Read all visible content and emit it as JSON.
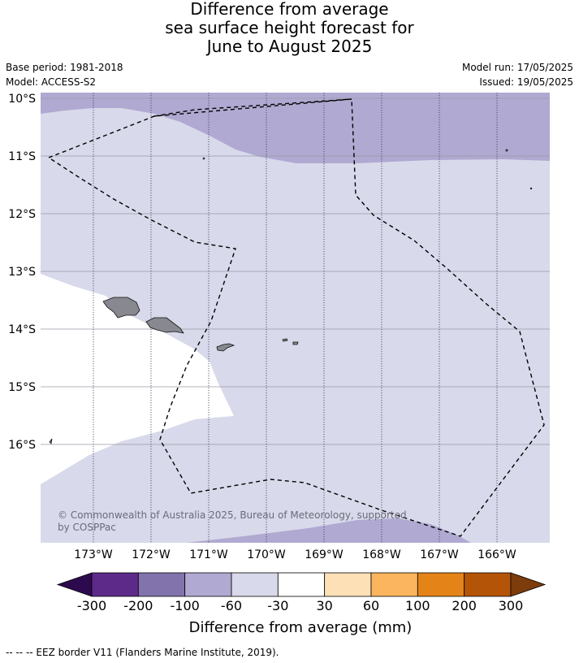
{
  "title_lines": [
    "Difference from average",
    "sea surface height forecast for",
    "June to August 2025"
  ],
  "meta": {
    "base_period": "Base period: 1981-2018",
    "model": "Model: ACCESS-S2",
    "model_run": "Model run: 17/05/2025",
    "issued": "Issued: 19/05/2025"
  },
  "map": {
    "lon_range": [
      -173.9,
      -165.05
    ],
    "lat_range": [
      -17.7,
      -9.9
    ],
    "lat_ticks": [
      "10°S",
      "11°S",
      "12°S",
      "13°S",
      "14°S",
      "15°S",
      "16°S"
    ],
    "lon_ticks": [
      "173°W",
      "172°W",
      "171°W",
      "170°W",
      "169°W",
      "168°W",
      "167°W",
      "166°W"
    ],
    "gridlines": true,
    "copyright": "© Commonwealth of Australia 2025, Bureau of Meteorology, supported by COSPPac"
  },
  "colorbar": {
    "label": "Difference from average (mm)",
    "ticks": [
      "-300",
      "-200",
      "-100",
      "-60",
      "-30",
      "30",
      "60",
      "100",
      "200",
      "300"
    ],
    "colors": [
      "#2d0a4e",
      "#5e2a8a",
      "#8273ad",
      "#b0a9d1",
      "#d8d9ea",
      "#ffffff",
      "#fde0b6",
      "#fab55e",
      "#e48418",
      "#b35407",
      "#7c3c0b"
    ]
  },
  "legend_note": "--  --  -- EEZ border V11 (Flanders Marine Institute, 2019)."
}
